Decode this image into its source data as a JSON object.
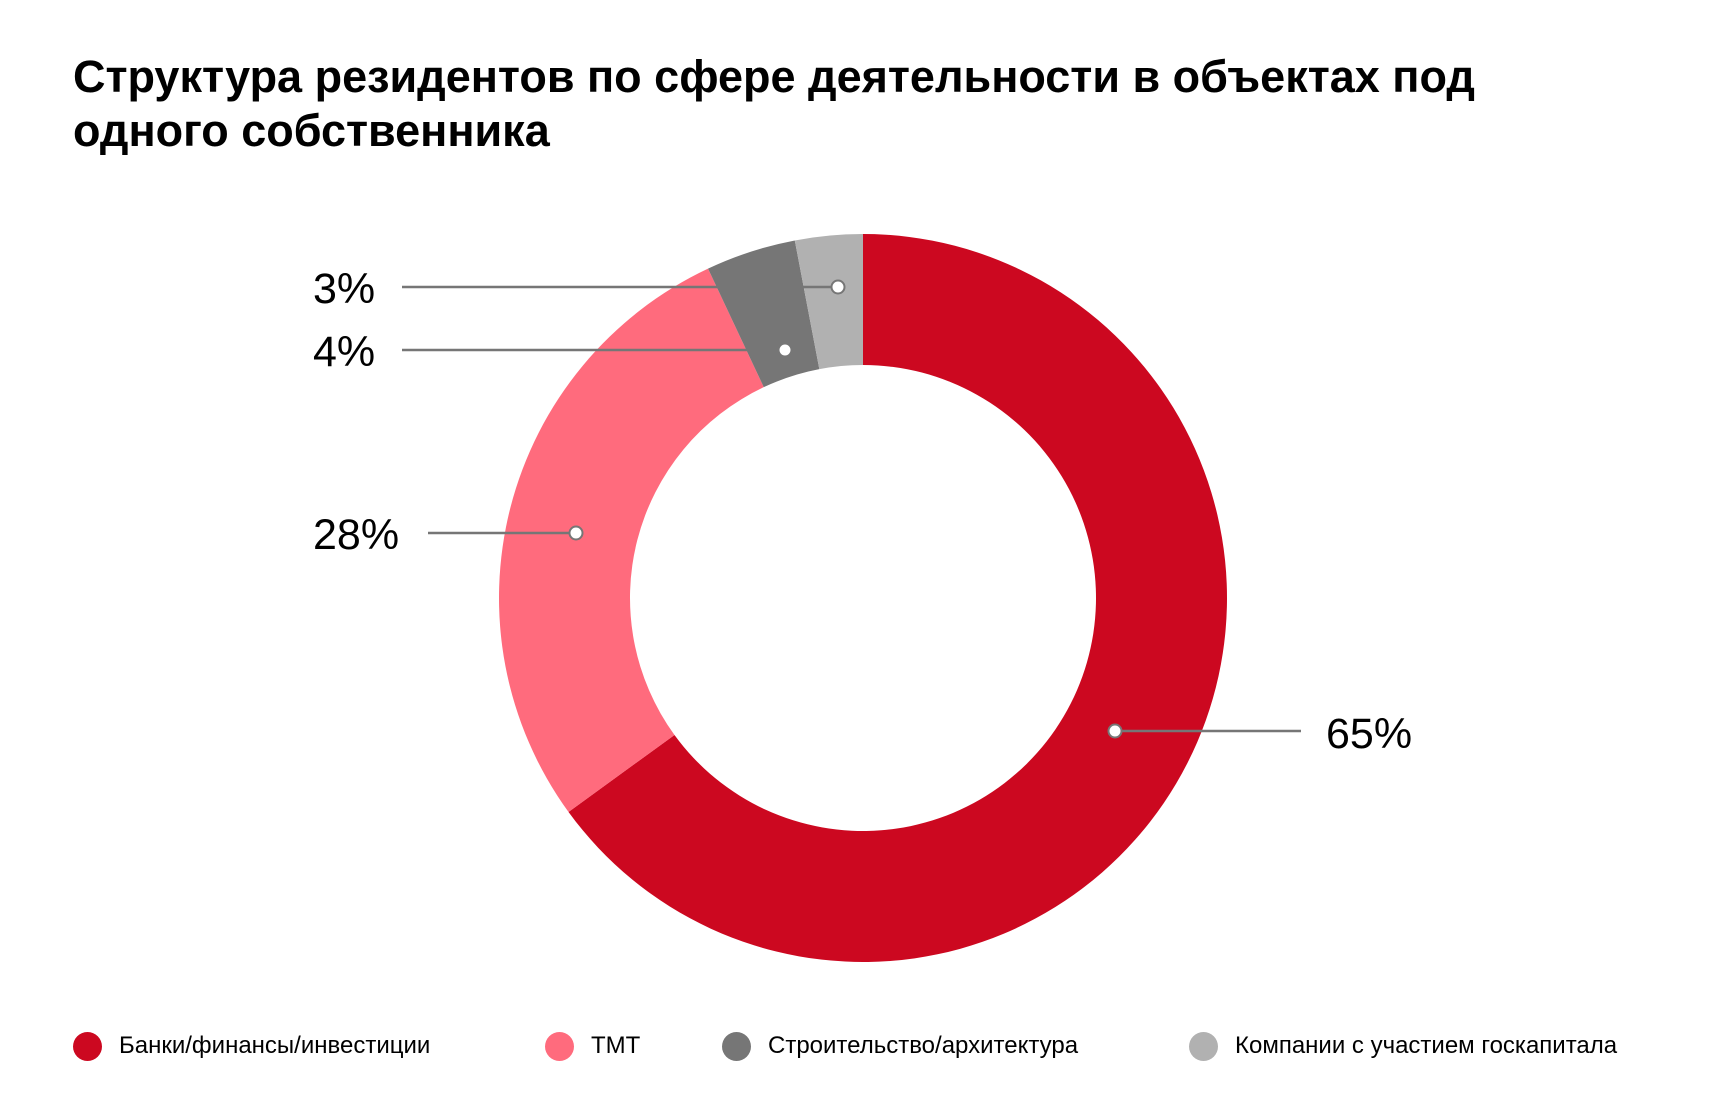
{
  "chart_data": {
    "type": "pie",
    "variant": "donut",
    "title": "Структура резидентов по сфере деятельности в объектах под одного собственника",
    "unit": "%",
    "legend_position": "bottom",
    "slices": [
      {
        "name": "Банки/финансы/инвестиции",
        "value": 65,
        "label": "65%",
        "color": "#CC0820"
      },
      {
        "name": "ТМТ",
        "value": 28,
        "label": "28%",
        "color": "#FF6B7D"
      },
      {
        "name": "Строительство/архитектура",
        "value": 4,
        "label": "4%",
        "color": "#767676"
      },
      {
        "name": "Компании с участием госкапитала",
        "value": 3,
        "label": "3%",
        "color": "#B1B1B1"
      }
    ]
  }
}
